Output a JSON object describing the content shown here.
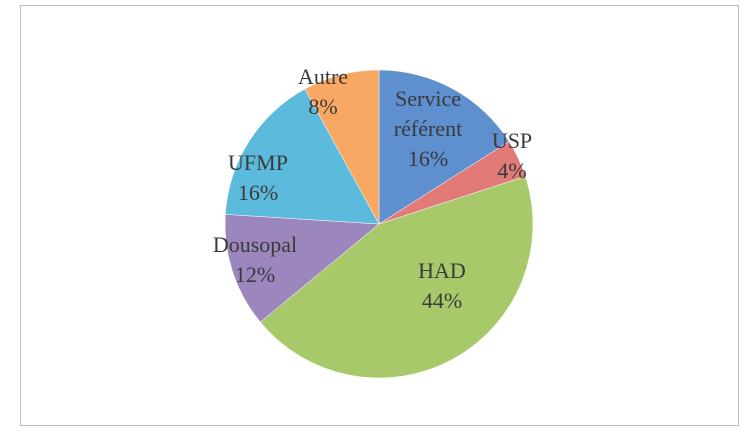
{
  "chart_data": {
    "type": "pie",
    "categories": [
      "Service référent",
      "USP",
      "HAD",
      "Dousopal",
      "UFMP",
      "Autre"
    ],
    "values": [
      16,
      4,
      44,
      12,
      16,
      8
    ],
    "value_labels": [
      "16%",
      "4%",
      "44%",
      "12%",
      "16%",
      "8%"
    ],
    "colors": [
      "#5e8fcf",
      "#e27b77",
      "#a8c96a",
      "#9b86bd",
      "#5cbbdc",
      "#f8a863"
    ]
  }
}
